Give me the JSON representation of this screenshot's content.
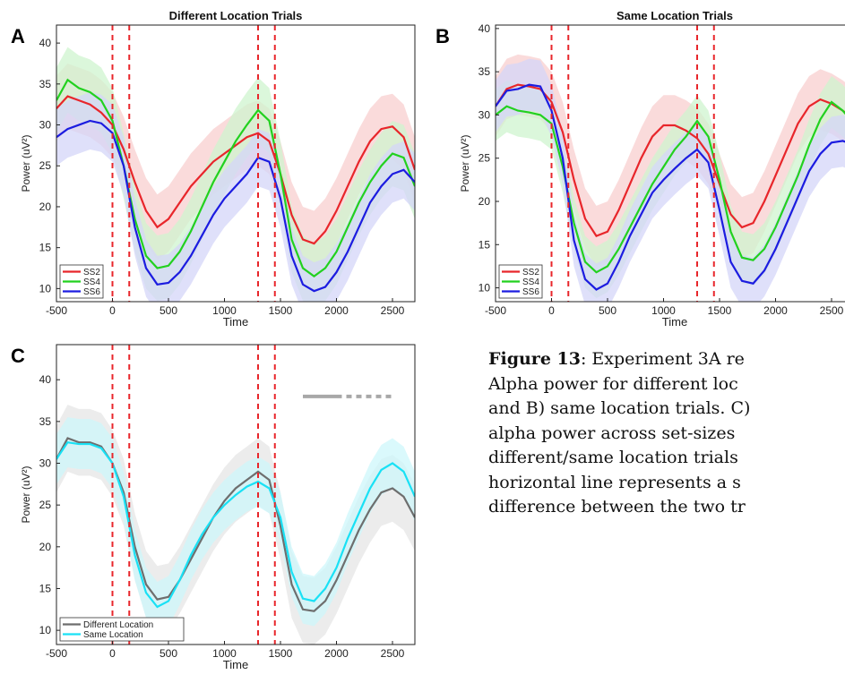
{
  "chart_data": [
    {
      "type": "line",
      "panel": "A",
      "title": "Different Location Trials",
      "xlabel": "Time",
      "ylabel": "Power (uV²)",
      "x": [
        -500,
        -400,
        -300,
        -200,
        -100,
        0,
        100,
        200,
        300,
        400,
        500,
        600,
        700,
        800,
        900,
        1000,
        1100,
        1200,
        1300,
        1400,
        1500,
        1600,
        1700,
        1800,
        1900,
        2000,
        2100,
        2200,
        2300,
        2400,
        2500,
        2600,
        2700
      ],
      "series": [
        {
          "name": "SS2",
          "color": "#e8262b",
          "band_color": "#f8cfcf",
          "error": 4,
          "values": [
            32,
            33.5,
            33,
            32.5,
            31.5,
            30,
            27,
            23,
            19.5,
            17.5,
            18.5,
            20.5,
            22.5,
            24,
            25.5,
            26.5,
            27.5,
            28.5,
            29,
            28,
            24,
            19,
            16,
            15.5,
            17,
            19.5,
            22.5,
            25.5,
            28,
            29.5,
            29.8,
            28.5,
            24.5
          ]
        },
        {
          "name": "SS4",
          "color": "#22d11f",
          "band_color": "#cff4cf",
          "error": 4,
          "values": [
            33,
            35.5,
            34.5,
            34,
            33,
            30.5,
            25,
            18.5,
            14,
            12.5,
            12.8,
            14.5,
            17,
            20,
            23,
            25.5,
            28,
            30,
            31.8,
            30.5,
            24,
            16,
            12.5,
            11.5,
            12.5,
            14.5,
            17.5,
            20.5,
            23,
            25,
            26.5,
            26,
            22.5
          ]
        },
        {
          "name": "SS6",
          "color": "#1c1ce0",
          "band_color": "#d4d6f8",
          "error": 3.5,
          "values": [
            28.5,
            29.5,
            30,
            30.5,
            30.2,
            29,
            25,
            17.5,
            12.5,
            10.5,
            10.7,
            12,
            14,
            16.5,
            19,
            21,
            22.5,
            24,
            26,
            25.5,
            21,
            14,
            10.5,
            9.7,
            10.2,
            12,
            14.5,
            17.5,
            20.5,
            22.5,
            24,
            24.5,
            23
          ]
        }
      ],
      "vlines": [
        0,
        150,
        1300,
        1450
      ],
      "vline_color": "#e8262b",
      "xlim": [
        -500,
        2700
      ],
      "ylim": [
        8.4,
        42.2
      ],
      "xticks": [
        -500,
        0,
        500,
        1000,
        1500,
        2000,
        2500
      ],
      "yticks": [
        10,
        15,
        20,
        25,
        30,
        35,
        40
      ],
      "legend": "lower left"
    },
    {
      "type": "line",
      "panel": "B",
      "title": "Same Location Trials",
      "xlabel": "Time",
      "ylabel": "Power (uV²)",
      "x": [
        -500,
        -400,
        -300,
        -200,
        -100,
        0,
        100,
        200,
        300,
        400,
        500,
        600,
        700,
        800,
        900,
        1000,
        1100,
        1200,
        1300,
        1400,
        1500,
        1600,
        1700,
        1800,
        1900,
        2000,
        2100,
        2200,
        2300,
        2400,
        2500,
        2600,
        2700
      ],
      "series": [
        {
          "name": "SS2",
          "color": "#e8262b",
          "band_color": "#f8cfcf",
          "error": 3.5,
          "values": [
            31,
            33,
            33.5,
            33.3,
            33,
            31.5,
            28,
            22.5,
            18,
            16,
            16.5,
            19,
            22,
            25,
            27.5,
            28.8,
            28.8,
            28.2,
            27.3,
            25.5,
            22,
            18.5,
            17,
            17.5,
            20,
            23,
            26,
            29,
            31,
            31.8,
            31.3,
            30.5,
            29.5
          ]
        },
        {
          "name": "SS4",
          "color": "#22d11f",
          "band_color": "#cff4cf",
          "error": 3,
          "values": [
            30,
            31,
            30.5,
            30.3,
            30,
            29,
            24,
            17.5,
            13,
            11.8,
            12.5,
            14.5,
            17,
            19.5,
            22,
            24,
            26,
            27.5,
            29.3,
            27.5,
            22.5,
            16.5,
            13.5,
            13.2,
            14.5,
            17,
            20,
            23,
            26.5,
            29.5,
            31.5,
            30.5,
            29
          ]
        },
        {
          "name": "SS6",
          "color": "#1c1ce0",
          "band_color": "#d4d6f8",
          "error": 3,
          "values": [
            31,
            32.8,
            33,
            33.5,
            33.3,
            30.5,
            25,
            15.5,
            11,
            9.8,
            10.5,
            13,
            16,
            18.5,
            21,
            22.5,
            23.8,
            25,
            26,
            24.5,
            19,
            13,
            10.8,
            10.5,
            12,
            14.5,
            17.5,
            20.5,
            23.5,
            25.5,
            26.8,
            27,
            26.5
          ]
        }
      ],
      "vlines": [
        0,
        150,
        1300,
        1450
      ],
      "vline_color": "#e8262b",
      "xlim": [
        -500,
        2700
      ],
      "ylim": [
        8.4,
        40.4
      ],
      "xticks": [
        -500,
        0,
        500,
        1000,
        1500,
        2000,
        2500
      ],
      "yticks": [
        10,
        15,
        20,
        25,
        30,
        35,
        40
      ],
      "legend": "lower left"
    },
    {
      "type": "line",
      "panel": "C",
      "xlabel": "Time",
      "ylabel": "Power (uV²)",
      "x": [
        -500,
        -400,
        -300,
        -200,
        -100,
        0,
        100,
        200,
        300,
        400,
        500,
        600,
        700,
        800,
        900,
        1000,
        1100,
        1200,
        1300,
        1400,
        1500,
        1600,
        1700,
        1800,
        1900,
        2000,
        2100,
        2200,
        2300,
        2400,
        2500,
        2600,
        2700
      ],
      "series": [
        {
          "name": "Different Location",
          "color": "#6e6e6e",
          "band_color": "#e6e6e6",
          "error": 4,
          "values": [
            30.5,
            33,
            32.5,
            32.5,
            32,
            30,
            26.5,
            20,
            15.5,
            13.7,
            14,
            16,
            18.5,
            21,
            23.5,
            25.5,
            27,
            28,
            29,
            28,
            22.5,
            15.5,
            12.5,
            12.3,
            13.5,
            16,
            19,
            22,
            24.5,
            26.5,
            27,
            26,
            23.5
          ]
        },
        {
          "name": "Same Location",
          "color": "#19e1f5",
          "band_color": "#cdf7fb",
          "error": 3,
          "values": [
            30.5,
            32.5,
            32.3,
            32.3,
            31.8,
            30,
            26,
            19,
            14.5,
            12.8,
            13.5,
            16,
            19,
            21.5,
            23.5,
            25,
            26.2,
            27.2,
            27.8,
            27,
            23.5,
            17,
            13.8,
            13.5,
            15,
            17.5,
            21,
            24,
            27,
            29.2,
            30,
            29,
            26
          ]
        }
      ],
      "vlines": [
        0,
        150,
        1300,
        1450
      ],
      "vline_color": "#e8262b",
      "significance": {
        "y": 38,
        "solid": [
          1700,
          2000
        ],
        "dotted": [
          2000,
          2500
        ],
        "color": "#a8a8a8"
      },
      "xlim": [
        -500,
        2700
      ],
      "ylim": [
        8.3,
        44.2
      ],
      "xticks": [
        -500,
        0,
        500,
        1000,
        1500,
        2000,
        2500
      ],
      "yticks": [
        10,
        15,
        20,
        25,
        30,
        35,
        40
      ],
      "legend": "lower left"
    }
  ],
  "caption": {
    "label": "Figure 13",
    "lines": [
      ": Experiment 3A re",
      "Alpha power for different loc",
      "and B) same location trials. C)",
      "alpha power across set-sizes",
      "different/same location trials",
      "horizontal line represents a s",
      "difference between the two tr"
    ]
  }
}
